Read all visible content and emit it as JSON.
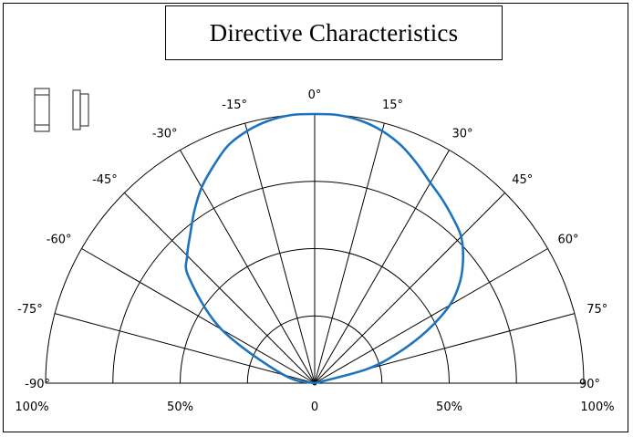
{
  "chart_data": {
    "type": "polar",
    "title": "Directive Characteristics",
    "angle_labels": [
      "-90°",
      "-75°",
      "-60°",
      "-45°",
      "-30°",
      "-15°",
      "0°",
      "15°",
      "30°",
      "45°",
      "60°",
      "75°",
      "90°"
    ],
    "radial_axis_labels": [
      "100%",
      "50%",
      "0",
      "50%",
      "100%"
    ],
    "angles_deg": [
      -90,
      -75,
      -60,
      -45,
      -30,
      -15,
      0,
      15,
      30,
      45,
      60,
      75,
      90
    ],
    "radial_range": [
      0,
      100
    ],
    "grid": true,
    "series": [
      {
        "color": "#1e73be",
        "angles": [
          -90,
          -75,
          -60,
          -50,
          -45,
          -40,
          -35,
          -30,
          -25,
          -20,
          -15,
          -10,
          -5,
          0,
          5,
          10,
          15,
          20,
          25,
          30,
          35,
          40,
          45,
          50,
          55,
          60,
          65,
          70,
          75,
          90
        ],
        "values": [
          0,
          12,
          40,
          61,
          67,
          72,
          78,
          84,
          89,
          94,
          97,
          99,
          100,
          100,
          100,
          99,
          97,
          94,
          90,
          86,
          83,
          80,
          77,
          72,
          66,
          58,
          46,
          33,
          20,
          0
        ]
      }
    ],
    "ylim": [
      0,
      100
    ]
  },
  "icons": [
    "led-front-icon",
    "led-side-icon"
  ]
}
